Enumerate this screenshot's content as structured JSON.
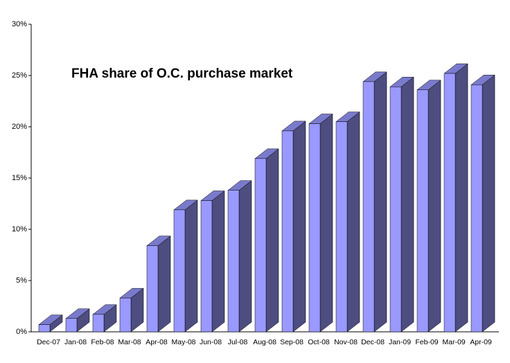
{
  "chart_data": {
    "type": "bar3d",
    "title": "FHA share of O.C. purchase market",
    "categories": [
      "Dec-07",
      "Jan-08",
      "Feb-08",
      "Mar-08",
      "Apr-08",
      "May-08",
      "Jun-08",
      "Jul-08",
      "Aug-08",
      "Sep-08",
      "Oct-08",
      "Nov-08",
      "Dec-08",
      "Jan-09",
      "Feb-09",
      "Mar-09",
      "Apr-09"
    ],
    "values": [
      0.7,
      1.3,
      1.7,
      3.3,
      8.4,
      11.9,
      12.8,
      13.8,
      16.9,
      19.6,
      20.3,
      20.5,
      24.4,
      23.9,
      23.6,
      25.2,
      24.1
    ],
    "color": "#9999ff",
    "ylim": [
      0,
      30
    ],
    "yticks": [
      {
        "value": 0,
        "label": "0%"
      },
      {
        "value": 5,
        "label": "5%"
      },
      {
        "value": 10,
        "label": "10%"
      },
      {
        "value": 15,
        "label": "15%"
      },
      {
        "value": 20,
        "label": "20%"
      },
      {
        "value": 25,
        "label": "25%"
      },
      {
        "value": 30,
        "label": "30%"
      }
    ]
  }
}
